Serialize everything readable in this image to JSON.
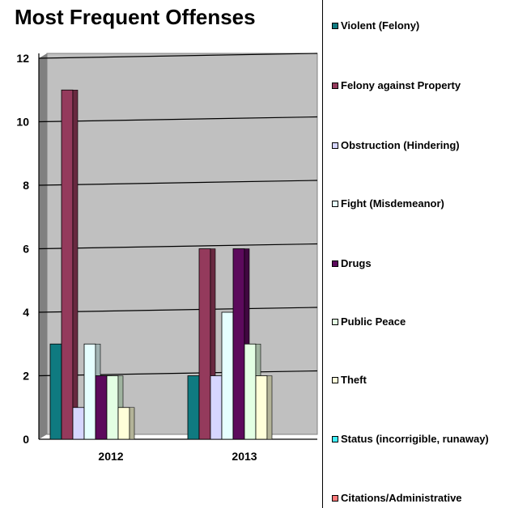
{
  "chart_data": {
    "type": "bar",
    "title": "Most Frequent Offenses",
    "categories": [
      "2012",
      "2013"
    ],
    "ylim": [
      0,
      12
    ],
    "yticks": [
      0,
      2,
      4,
      6,
      8,
      10,
      12
    ],
    "grid": true,
    "legend_position": "right",
    "series": [
      {
        "name": "Violent (Felony)",
        "color": "#0f7a80",
        "values": [
          3,
          2
        ]
      },
      {
        "name": "Felony against Property",
        "color": "#943a5c",
        "values": [
          11,
          6
        ]
      },
      {
        "name": "Obstruction (Hindering)",
        "color": "#d6d6ff",
        "values": [
          1,
          2
        ]
      },
      {
        "name": "Fight (Misdemeanor)",
        "color": "#e6ffff",
        "values": [
          3,
          4
        ]
      },
      {
        "name": "Drugs",
        "color": "#5c0a5c",
        "values": [
          2,
          6
        ]
      },
      {
        "name": "Public Peace",
        "color": "#e3ffe3",
        "values": [
          2,
          3
        ]
      },
      {
        "name": "Theft",
        "color": "#ffffd9",
        "values": [
          1,
          2
        ]
      },
      {
        "name": "Status (incorrigible, runaway)",
        "color": "#40f0ff",
        "values": [
          0,
          0
        ]
      },
      {
        "name": "Citations/Administrative",
        "color": "#ff7a7a",
        "values": [
          0,
          0
        ]
      }
    ]
  }
}
